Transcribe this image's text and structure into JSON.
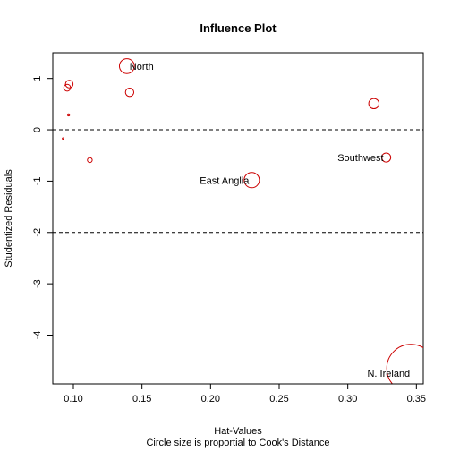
{
  "chart_data": {
    "type": "scatter",
    "title": "Influence Plot",
    "xlabel": "Hat-Values",
    "xlabel_sub": "Circle size is proportial to Cook's Distance",
    "ylabel": "Studentized Residuals",
    "xlim": [
      0.085,
      0.355
    ],
    "ylim": [
      -4.95,
      1.5
    ],
    "xticks": [
      0.1,
      0.15,
      0.2,
      0.25,
      0.3,
      0.35
    ],
    "xtick_labels": [
      "0.10",
      "0.15",
      "0.20",
      "0.25",
      "0.30",
      "0.35"
    ],
    "yticks": [
      -4,
      -3,
      -2,
      -1,
      0,
      1
    ],
    "ytick_labels": [
      "-4",
      "-3",
      "-2",
      "-1",
      "0",
      "1"
    ],
    "reference_lines": [
      0,
      -2
    ],
    "grid": false,
    "point_color": "#cc0000",
    "points": [
      {
        "x": 0.0925,
        "y": -0.17,
        "cooks": 0.002,
        "label": ""
      },
      {
        "x": 0.0955,
        "y": 0.82,
        "cooks": 0.04,
        "label": ""
      },
      {
        "x": 0.097,
        "y": 0.89,
        "cooks": 0.05,
        "label": ""
      },
      {
        "x": 0.0965,
        "y": 0.29,
        "cooks": 0.004,
        "label": ""
      },
      {
        "x": 0.112,
        "y": -0.59,
        "cooks": 0.02,
        "label": ""
      },
      {
        "x": 0.139,
        "y": 1.24,
        "cooks": 0.19,
        "label": "North"
      },
      {
        "x": 0.141,
        "y": 0.73,
        "cooks": 0.06,
        "label": ""
      },
      {
        "x": 0.23,
        "y": -0.98,
        "cooks": 0.2,
        "label": "East Anglia"
      },
      {
        "x": 0.319,
        "y": 0.51,
        "cooks": 0.09,
        "label": ""
      },
      {
        "x": 0.328,
        "y": -0.54,
        "cooks": 0.07,
        "label": "Southwest"
      },
      {
        "x": 0.346,
        "y": -4.65,
        "cooks": 2.0,
        "label": "N. Ireland"
      }
    ]
  }
}
